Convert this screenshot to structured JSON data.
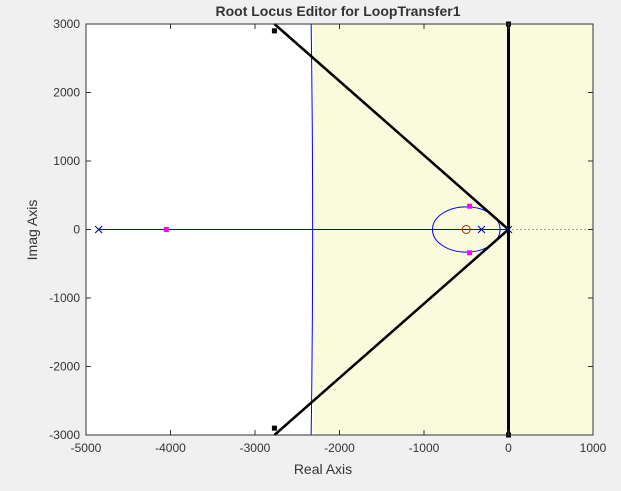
{
  "chart_data": {
    "type": "root-locus",
    "title": "Root Locus Editor for LoopTransfer1",
    "xlabel": "Real Axis",
    "ylabel": "Imag Axis",
    "xlim": [
      -5000,
      1000
    ],
    "ylim": [
      -3000,
      3000
    ],
    "xticks": [
      -5000,
      -4000,
      -3000,
      -2000,
      -1000,
      0,
      1000
    ],
    "xtick_labels": [
      "-5000",
      "-4000",
      "-3000",
      "-2000",
      "-1000",
      "0",
      "1000"
    ],
    "yticks": [
      -3000,
      -2000,
      -1000,
      0,
      1000,
      2000,
      3000
    ],
    "ytick_labels": [
      "-3000",
      "-2000",
      "-1000",
      "0",
      "1000",
      "2000",
      "3000"
    ],
    "grid": false,
    "shaded_region": {
      "x_from": -2300,
      "x_to": 1000,
      "color": "#fafadc"
    },
    "poles": [
      {
        "x": -4850,
        "y": 0
      },
      {
        "x": -320,
        "y": 0
      },
      {
        "x": 0,
        "y": 0
      }
    ],
    "zeros": [
      {
        "x": -500,
        "y": 0
      }
    ],
    "closed_loop_poles": [
      {
        "x": -4050,
        "y": 0
      },
      {
        "x": -460,
        "y": 340
      },
      {
        "x": -460,
        "y": -340
      }
    ],
    "locus_real_axis": {
      "x_from": -4850,
      "x_to": 0
    },
    "locus_circle": {
      "center_x": -500,
      "center_y": 0,
      "rx": 400,
      "ry": 330
    },
    "locus_vertical_branch": {
      "x": -2300,
      "y_from": -3000,
      "y_to": 3000
    },
    "damping_boundary": [
      {
        "x": -2770,
        "y": 3000
      },
      {
        "x": 0,
        "y": 0
      },
      {
        "x": -2770,
        "y": -3000
      }
    ],
    "stability_boundary": {
      "x": 0,
      "y_from": -3000,
      "y_to": 3000
    },
    "damping_markers": [
      {
        "x": -2770,
        "y": 2900
      },
      {
        "x": -2770,
        "y": -2900
      },
      {
        "x": 0,
        "y": 3000
      },
      {
        "x": 0,
        "y": -3000
      }
    ],
    "colors": {
      "locus": "#0000ff",
      "closed_loop_pole": "#ff00ff",
      "pole_marker": "#0000aa",
      "zero_marker": "#b22222",
      "boundary": "#000000",
      "shaded": "#fafadc"
    }
  }
}
